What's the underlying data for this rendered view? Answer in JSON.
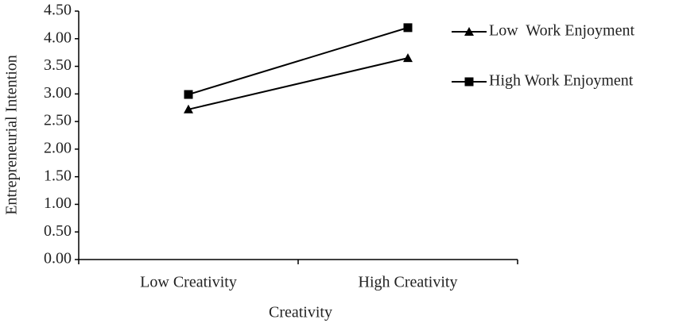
{
  "chart_data": {
    "type": "line",
    "y_label": "Entrepreneurial Intention",
    "x_label": "Creativity",
    "categories": [
      "Low  Creativity",
      "High Creativity"
    ],
    "series": [
      {
        "name": "Low  Work Enjoyment",
        "color": "#000000",
        "marker": "triangle",
        "values": [
          2.72,
          3.65
        ]
      },
      {
        "name": "High Work Enjoyment",
        "color": "#000000",
        "marker": "square",
        "values": [
          2.99,
          4.2
        ]
      }
    ],
    "ylim": [
      0,
      4.5
    ],
    "yticks": [
      {
        "value": 0,
        "label": "0.00"
      },
      {
        "value": 0.5,
        "label": "0.50"
      },
      {
        "value": 1,
        "label": "1.00"
      },
      {
        "value": 1.5,
        "label": "1.50"
      },
      {
        "value": 2,
        "label": "2.00"
      },
      {
        "value": 2.5,
        "label": "2.50"
      },
      {
        "value": 3,
        "label": "3.00"
      },
      {
        "value": 3.5,
        "label": "3.50"
      },
      {
        "value": 4,
        "label": "4.00"
      },
      {
        "value": 4.5,
        "label": "4.50"
      }
    ],
    "legend": "right"
  }
}
